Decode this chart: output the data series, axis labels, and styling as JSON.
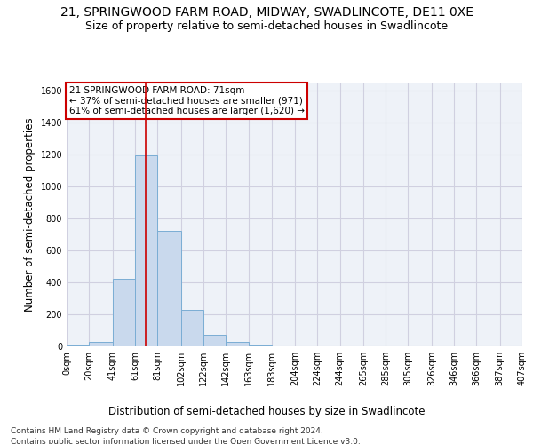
{
  "title_line1": "21, SPRINGWOOD FARM ROAD, MIDWAY, SWADLINCOTE, DE11 0XE",
  "title_line2": "Size of property relative to semi-detached houses in Swadlincote",
  "xlabel": "Distribution of semi-detached houses by size in Swadlincote",
  "ylabel": "Number of semi-detached properties",
  "footnote1": "Contains HM Land Registry data © Crown copyright and database right 2024.",
  "footnote2": "Contains public sector information licensed under the Open Government Licence v3.0.",
  "bin_labels": [
    "0sqm",
    "20sqm",
    "41sqm",
    "61sqm",
    "81sqm",
    "102sqm",
    "122sqm",
    "142sqm",
    "163sqm",
    "183sqm",
    "204sqm",
    "224sqm",
    "244sqm",
    "265sqm",
    "285sqm",
    "305sqm",
    "326sqm",
    "346sqm",
    "366sqm",
    "387sqm",
    "407sqm"
  ],
  "bin_edges": [
    0,
    20,
    41,
    61,
    81,
    102,
    122,
    142,
    163,
    183,
    204,
    224,
    244,
    265,
    285,
    305,
    326,
    346,
    366,
    387,
    407
  ],
  "bar_values": [
    5,
    30,
    420,
    1190,
    720,
    225,
    70,
    25,
    5,
    0,
    0,
    0,
    0,
    0,
    0,
    0,
    0,
    0,
    0,
    0
  ],
  "bar_color": "#c9d9ed",
  "bar_edge_color": "#7aadd4",
  "grid_color": "#d0d0e0",
  "background_color": "#eef2f8",
  "annotation_box_color": "#ffffff",
  "annotation_box_edge": "#cc0000",
  "annotation_text_line1": "21 SPRINGWOOD FARM ROAD: 71sqm",
  "annotation_text_line2": "← 37% of semi-detached houses are smaller (971)",
  "annotation_text_line3": "61% of semi-detached houses are larger (1,620) →",
  "property_line_x": 71,
  "property_line_color": "#cc0000",
  "ylim": [
    0,
    1650
  ],
  "yticks": [
    0,
    200,
    400,
    600,
    800,
    1000,
    1200,
    1400,
    1600
  ],
  "title_fontsize": 10,
  "subtitle_fontsize": 9,
  "axis_label_fontsize": 8.5,
  "tick_fontsize": 7,
  "annotation_fontsize": 7.5,
  "footnote_fontsize": 6.5
}
